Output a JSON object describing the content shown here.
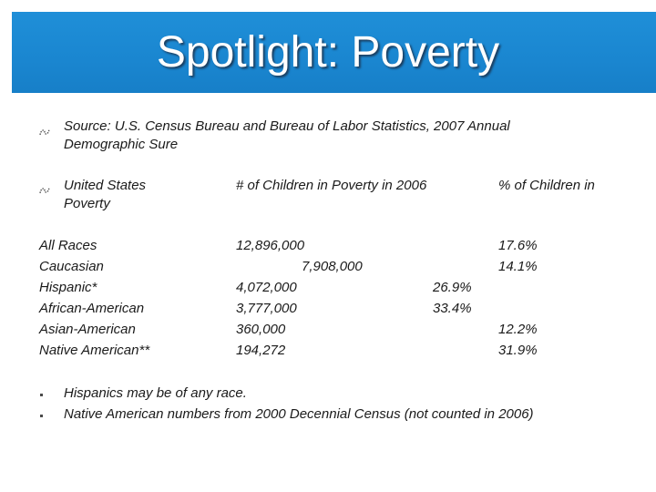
{
  "slide": {
    "title": "Spotlight: Poverty",
    "source_line_1": "Source: U.S. Census Bureau and Bureau of Labor Statistics, 2007 Annual",
    "source_line_2": "Demographic Sure",
    "header_left_1": "United States",
    "header_left_2": "Poverty",
    "header_mid": "# of Children in Poverty in 2006",
    "header_right": "% of Children in",
    "rows": [
      {
        "label": "All Races",
        "count": "12,896,000",
        "percent": "17.6%"
      },
      {
        "label": "Caucasian",
        "count": "7,908,000",
        "percent": "14.1%"
      },
      {
        "label": "Hispanic*",
        "count": "4,072,000",
        "percent": "26.9%"
      },
      {
        "label": "African-American",
        "count": "3,777,000",
        "percent": "33.4%"
      },
      {
        "label": "Asian-American",
        "count": "360,000",
        "percent": "12.2%"
      },
      {
        "label": "Native American**",
        "count": "194,272",
        "percent": "31.9%"
      }
    ],
    "footnotes": [
      "Hispanics may be of any race.",
      "Native American numbers from 2000 Decennial Census (not counted in 2006)"
    ],
    "accent_color": "#1a86d0",
    "bullet_icon": "dotted-curl-bullet-icon"
  }
}
